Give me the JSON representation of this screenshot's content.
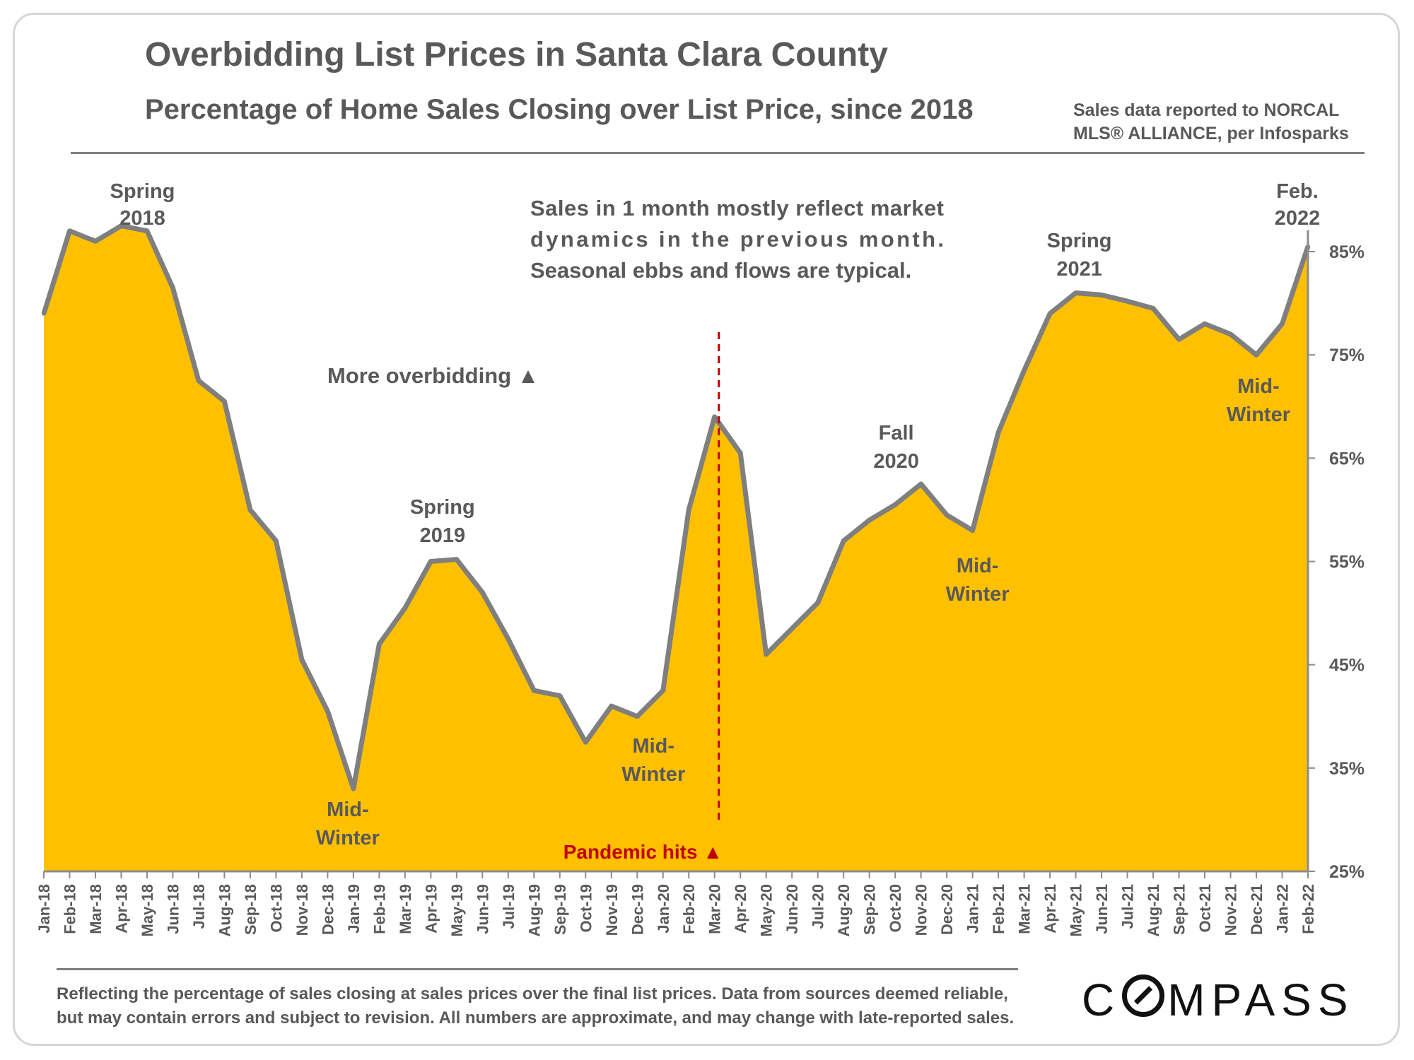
{
  "header": {
    "title": "Overbidding List Prices in Santa Clara County",
    "subtitle": "Percentage of Home Sales Closing over List Price, since 2018",
    "source_line1": "Sales data reported to NORCAL",
    "source_line2": "MLS® ALLIANCE, per Infosparks"
  },
  "footer": {
    "note_line1": "Reflecting the percentage of sales closing at sales prices over the final list prices. Data from sources deemed reliable,",
    "note_line2": "but may contain errors and subject to revision. All numbers are approximate, and may change with late-reported sales.",
    "logo_pre": "C",
    "logo_post": "MPASS"
  },
  "colors": {
    "area_fill": "#ffc000",
    "line": "#7f7f7f",
    "text": "#595959",
    "pandemic": "#c00000"
  },
  "chart_data": {
    "type": "area",
    "title": "Overbidding List Prices in Santa Clara County",
    "subtitle": "Percentage of Home Sales Closing over List Price, since 2018",
    "xlabel": "",
    "ylabel": "",
    "ylim": [
      25,
      85
    ],
    "yticks": [
      "25%",
      "35%",
      "45%",
      "55%",
      "65%",
      "75%",
      "85%"
    ],
    "y_axis_side": "right",
    "grid": false,
    "legend": "none",
    "categories": [
      "Jan-18",
      "Feb-18",
      "Mar-18",
      "Apr-18",
      "May-18",
      "Jun-18",
      "Jul-18",
      "Aug-18",
      "Sep-18",
      "Oct-18",
      "Nov-18",
      "Dec-18",
      "Jan-19",
      "Feb-19",
      "Mar-19",
      "Apr-19",
      "May-19",
      "Jun-19",
      "Jul-19",
      "Aug-19",
      "Sep-19",
      "Oct-19",
      "Nov-19",
      "Dec-19",
      "Jan-20",
      "Feb-20",
      "Mar-20",
      "Apr-20",
      "May-20",
      "Jun-20",
      "Jul-20",
      "Aug-20",
      "Sep-20",
      "Oct-20",
      "Nov-20",
      "Dec-20",
      "Jan-21",
      "Feb-21",
      "Mar-21",
      "Apr-21",
      "May-21",
      "Jun-21",
      "Jul-21",
      "Aug-21",
      "Sep-21",
      "Oct-21",
      "Nov-21",
      "Dec-21",
      "Jan-22",
      "Feb-22"
    ],
    "series": [
      {
        "values": [
          79,
          87,
          86,
          87.5,
          87,
          81.5,
          72.5,
          70.5,
          60,
          57,
          45.5,
          40.5,
          33,
          47,
          50.5,
          55,
          55.2,
          52,
          47.5,
          42.5,
          42,
          37.5,
          41,
          40,
          42.5,
          60,
          69,
          65.5,
          46,
          48.5,
          51,
          57,
          59,
          60.5,
          62.5,
          59.5,
          58,
          67.5,
          73.5,
          79,
          81,
          80.8,
          80.2,
          79.5,
          76.5,
          78,
          77,
          75,
          78,
          85.5
        ]
      }
    ],
    "annotations": [
      {
        "category": "Apr-18",
        "value": 87.5,
        "text": [
          "Spring",
          "2018"
        ]
      },
      {
        "category": "Jan-19",
        "value": 33,
        "text": [
          "Mid-",
          "Winter"
        ]
      },
      {
        "category": "May-19",
        "value": 55.2,
        "text": [
          "Spring",
          "2019"
        ]
      },
      {
        "category": "Dec-19",
        "value": 40,
        "text": [
          "Mid-",
          "Winter"
        ]
      },
      {
        "category": "Nov-20",
        "value": 62.5,
        "text": [
          "Fall",
          "2020"
        ]
      },
      {
        "category": "Jan-21",
        "value": 58,
        "text": [
          "Mid-",
          "Winter"
        ]
      },
      {
        "category": "May-21",
        "value": 81,
        "text": [
          "Spring",
          "2021"
        ]
      },
      {
        "category": "Dec-21",
        "value": 75,
        "text": [
          "Mid-",
          "Winter"
        ]
      },
      {
        "category": "Feb-22",
        "value": 85.5,
        "text": [
          "Feb.",
          "2022"
        ]
      }
    ],
    "notes": {
      "dynamics": [
        "Sales in 1 month mostly reflect market",
        "dynamics in the previous month.",
        "Seasonal ebbs and flows are typical."
      ],
      "more_overbidding": "More overbidding ▲",
      "pandemic": "Pandemic hits ▲",
      "pandemic_category": "Mar-20"
    }
  }
}
